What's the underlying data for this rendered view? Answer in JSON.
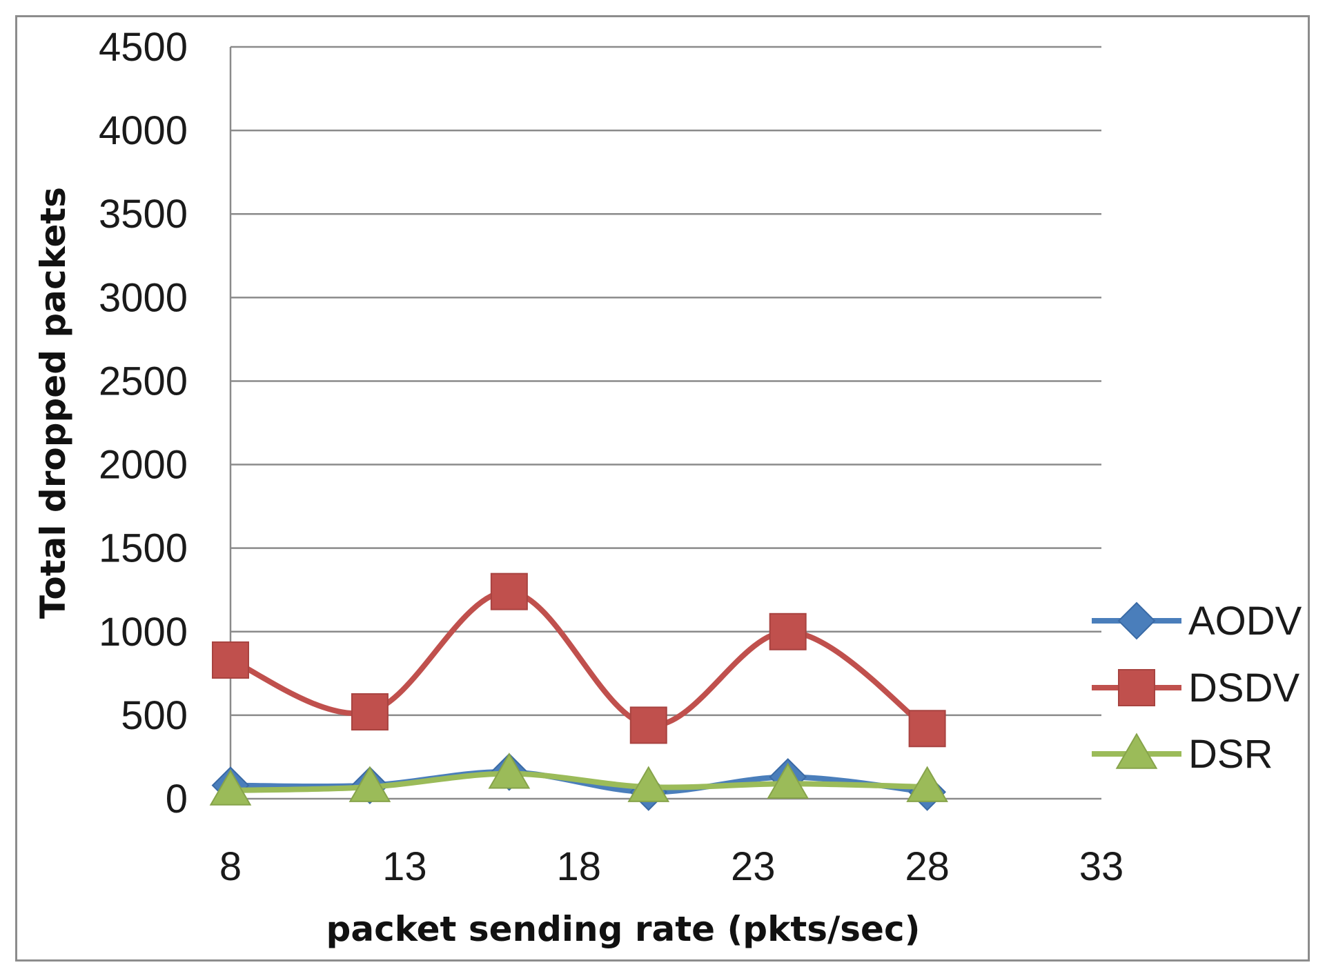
{
  "chart_data": {
    "type": "line",
    "xlabel": "packet sending rate (pkts/sec)",
    "ylabel": "Total dropped packets",
    "xlim": [
      8,
      33
    ],
    "ylim": [
      0,
      4500
    ],
    "xticks": [
      8,
      13,
      18,
      23,
      28,
      33
    ],
    "yticks": [
      0,
      500,
      1000,
      1500,
      2000,
      2500,
      3000,
      3500,
      4000,
      4500
    ],
    "grid": "horizontal",
    "legend_position": "right",
    "x": [
      8,
      12,
      16,
      20,
      24,
      28
    ],
    "series": [
      {
        "name": "AODV",
        "color": "#4a7ebb",
        "marker": "diamond",
        "values": [
          80,
          80,
          160,
          40,
          130,
          40
        ]
      },
      {
        "name": "DSDV",
        "color": "#c0504d",
        "marker": "square",
        "values": [
          830,
          520,
          1240,
          440,
          1000,
          420
        ]
      },
      {
        "name": "DSR",
        "color": "#9bbb59",
        "marker": "triangle",
        "values": [
          50,
          70,
          150,
          70,
          90,
          70
        ]
      }
    ]
  }
}
